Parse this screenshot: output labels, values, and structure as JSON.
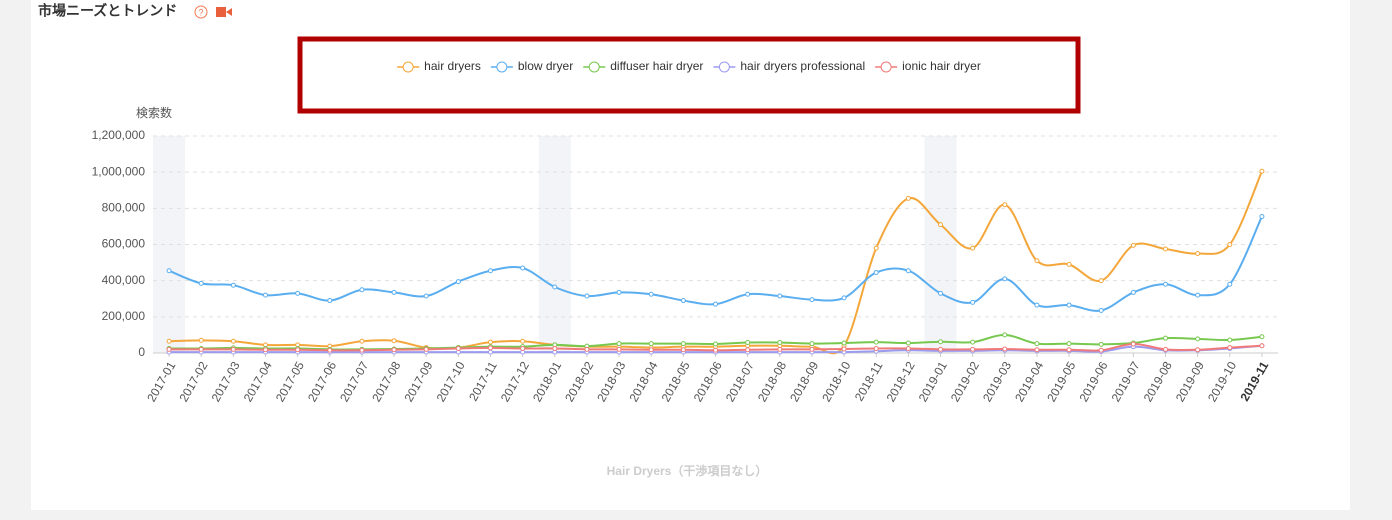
{
  "chart_data": {
    "type": "line",
    "title": "市場ニーズとトレンド",
    "y_label": "検索数",
    "caption": "Hair Dryers（干渉項目なし）",
    "categories": [
      "2017-01",
      "2017-02",
      "2017-03",
      "2017-04",
      "2017-05",
      "2017-06",
      "2017-07",
      "2017-08",
      "2017-09",
      "2017-10",
      "2017-11",
      "2017-12",
      "2018-01",
      "2018-02",
      "2018-03",
      "2018-04",
      "2018-05",
      "2018-06",
      "2018-07",
      "2018-08",
      "2018-09",
      "2018-10",
      "2018-11",
      "2018-12",
      "2019-01",
      "2019-02",
      "2019-03",
      "2019-04",
      "2019-05",
      "2019-06",
      "2019-07",
      "2019-08",
      "2019-09",
      "2019-10",
      "2019-11"
    ],
    "series": [
      {
        "name": "hair dryers",
        "color": "#f3a73b",
        "values": [
          65000,
          70000,
          65000,
          45000,
          45000,
          38000,
          65000,
          68000,
          30000,
          30000,
          60000,
          65000,
          45000,
          35000,
          35000,
          30000,
          35000,
          35000,
          40000,
          40000,
          35000,
          40000,
          580000,
          855000,
          710000,
          580000,
          820000,
          510000,
          490000,
          400000,
          595000,
          575000,
          550000,
          600000,
          1005000
        ]
      },
      {
        "name": "blow dryer",
        "color": "#5aaef0",
        "values": [
          455000,
          385000,
          375000,
          320000,
          330000,
          290000,
          350000,
          335000,
          315000,
          395000,
          455000,
          470000,
          365000,
          315000,
          335000,
          325000,
          290000,
          270000,
          325000,
          315000,
          295000,
          305000,
          445000,
          455000,
          330000,
          280000,
          410000,
          265000,
          265000,
          235000,
          335000,
          380000,
          320000,
          380000,
          755000
        ]
      },
      {
        "name": "diffuser hair dryer",
        "color": "#78c850",
        "values": [
          25000,
          25000,
          28000,
          25000,
          25000,
          20000,
          20000,
          22000,
          25000,
          30000,
          35000,
          35000,
          45000,
          38000,
          52000,
          52000,
          52000,
          50000,
          58000,
          58000,
          52000,
          55000,
          60000,
          55000,
          62000,
          60000,
          100000,
          52000,
          52000,
          48000,
          55000,
          82000,
          78000,
          72000,
          90000
        ]
      },
      {
        "name": "hair dryers professional",
        "color": "#9b9bf0",
        "values": [
          5000,
          5000,
          5000,
          5000,
          5000,
          5000,
          5000,
          5000,
          5000,
          5000,
          5000,
          5000,
          5000,
          5000,
          5000,
          5000,
          5000,
          5000,
          5000,
          5000,
          5000,
          5000,
          10000,
          15000,
          12000,
          12000,
          15000,
          12000,
          12000,
          8000,
          35000,
          15000,
          15000,
          25000,
          40000
        ]
      },
      {
        "name": "ionic hair dryer",
        "color": "#f07a7a",
        "values": [
          20000,
          20000,
          20000,
          18000,
          18000,
          15000,
          15000,
          18000,
          20000,
          25000,
          28000,
          25000,
          25000,
          20000,
          20000,
          18000,
          18000,
          15000,
          18000,
          20000,
          20000,
          22000,
          25000,
          25000,
          20000,
          20000,
          22000,
          18000,
          18000,
          15000,
          50000,
          20000,
          18000,
          30000,
          40000
        ]
      }
    ],
    "ylim": [
      0,
      1200000
    ],
    "yticks": [
      {
        "value": 0,
        "label": "0"
      },
      {
        "value": 200000,
        "label": "200,000"
      },
      {
        "value": 400000,
        "label": "400,000"
      },
      {
        "value": 600000,
        "label": "600,000"
      },
      {
        "value": 800000,
        "label": "800,000"
      },
      {
        "value": 1000000,
        "label": "1,000,000"
      },
      {
        "value": 1200000,
        "label": "1,200,000"
      }
    ],
    "grid": true
  }
}
